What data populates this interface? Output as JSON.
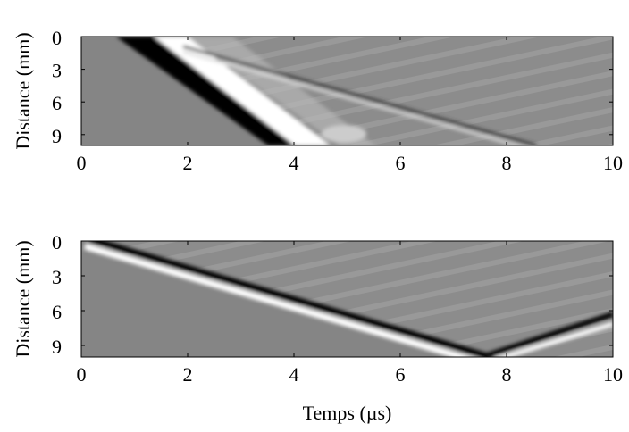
{
  "chart_data": [
    {
      "type": "image",
      "ylabel": "Distance (mm)",
      "xlim": [
        0,
        10
      ],
      "xticks": [
        0,
        2,
        4,
        6,
        8,
        10
      ],
      "ylim": [
        0,
        10
      ],
      "yticks": [
        0,
        3,
        6,
        9
      ],
      "y_inverted": true
    },
    {
      "type": "image",
      "ylabel": "Distance (mm)",
      "xlabel": "Temps (µs)",
      "xlim": [
        0,
        10
      ],
      "xticks": [
        0,
        2,
        4,
        6,
        8,
        10
      ],
      "ylim": [
        0,
        10
      ],
      "yticks": [
        0,
        3,
        6,
        9
      ],
      "y_inverted": true
    }
  ]
}
